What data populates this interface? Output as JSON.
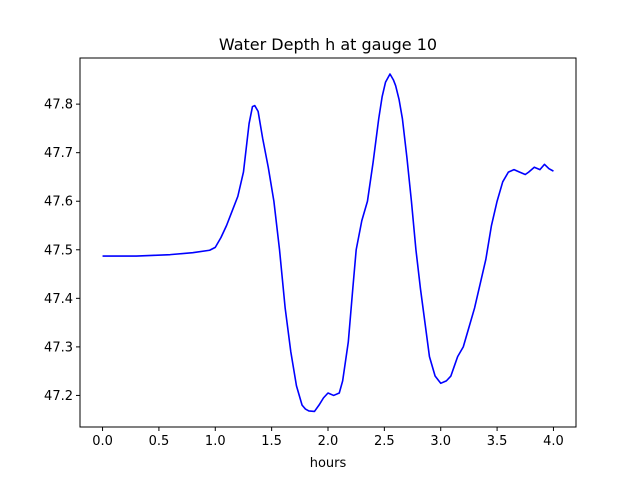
{
  "chart_data": {
    "type": "line",
    "title": "Water Depth h at gauge 10",
    "xlabel": "hours",
    "ylabel": "",
    "xlim": [
      -0.2,
      4.2
    ],
    "ylim": [
      47.135,
      47.895
    ],
    "grid": false,
    "x_ticks": [
      0.0,
      0.5,
      1.0,
      1.5,
      2.0,
      2.5,
      3.0,
      3.5,
      4.0
    ],
    "x_tick_labels": [
      "0.0",
      "0.5",
      "1.0",
      "1.5",
      "2.0",
      "2.5",
      "3.0",
      "3.5",
      "4.0"
    ],
    "y_ticks": [
      47.2,
      47.3,
      47.4,
      47.5,
      47.6,
      47.7,
      47.8
    ],
    "y_tick_labels": [
      "47.2",
      "47.3",
      "47.4",
      "47.5",
      "47.6",
      "47.7",
      "47.8"
    ],
    "series": [
      {
        "color": "#0000ff",
        "x": [
          0.0,
          0.3,
          0.6,
          0.8,
          0.95,
          1.0,
          1.05,
          1.1,
          1.15,
          1.2,
          1.25,
          1.28,
          1.3,
          1.33,
          1.35,
          1.38,
          1.42,
          1.47,
          1.52,
          1.57,
          1.62,
          1.67,
          1.72,
          1.77,
          1.8,
          1.83,
          1.88,
          1.92,
          1.96,
          2.0,
          2.05,
          2.1,
          2.13,
          2.18,
          2.22,
          2.25,
          2.3,
          2.35,
          2.4,
          2.45,
          2.48,
          2.51,
          2.55,
          2.58,
          2.6,
          2.63,
          2.66,
          2.7,
          2.74,
          2.78,
          2.82,
          2.86,
          2.9,
          2.95,
          3.0,
          3.05,
          3.09,
          3.12,
          3.15,
          3.2,
          3.25,
          3.3,
          3.35,
          3.4,
          3.45,
          3.5,
          3.55,
          3.6,
          3.65,
          3.7,
          3.75,
          3.78,
          3.83,
          3.88,
          3.92,
          3.96,
          4.0
        ],
        "y": [
          47.487,
          47.487,
          47.49,
          47.494,
          47.499,
          47.505,
          47.525,
          47.55,
          47.58,
          47.61,
          47.66,
          47.72,
          47.76,
          47.795,
          47.797,
          47.785,
          47.73,
          47.67,
          47.6,
          47.5,
          47.38,
          47.29,
          47.22,
          47.18,
          47.172,
          47.168,
          47.167,
          47.18,
          47.195,
          47.205,
          47.2,
          47.205,
          47.23,
          47.31,
          47.42,
          47.5,
          47.56,
          47.6,
          47.68,
          47.77,
          47.815,
          47.845,
          47.862,
          47.85,
          47.838,
          47.81,
          47.77,
          47.69,
          47.6,
          47.5,
          47.42,
          47.35,
          47.28,
          47.24,
          47.225,
          47.23,
          47.24,
          47.26,
          47.28,
          47.3,
          47.34,
          47.38,
          47.43,
          47.48,
          47.55,
          47.6,
          47.64,
          47.66,
          47.665,
          47.66,
          47.655,
          47.66,
          47.67,
          47.665,
          47.676,
          47.667,
          47.662
        ]
      }
    ]
  }
}
